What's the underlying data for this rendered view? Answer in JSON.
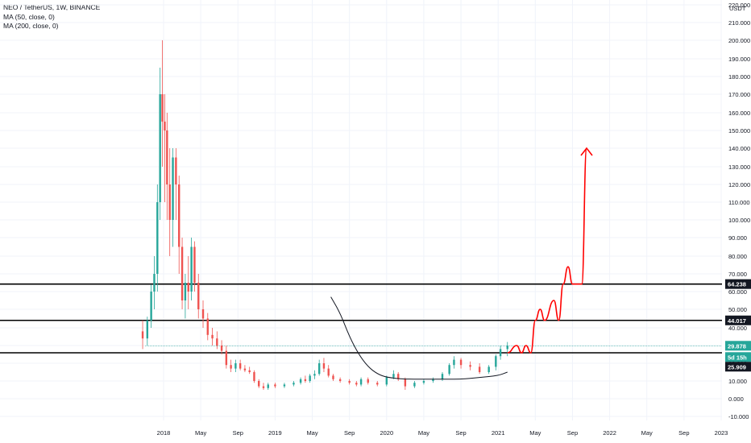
{
  "legend": {
    "symbol": "NEO / TetherUS, 1W, BINANCE",
    "ma50": "MA (50, close, 0)",
    "ma200": "MA (200, close, 0)"
  },
  "currency_label": "USDT",
  "colors": {
    "up": "#26a69a",
    "down": "#ef5350",
    "grid": "#f0f3fa",
    "hline": "#000000",
    "projection": "#ff0000",
    "ma": "#131722",
    "current_price": "#26a69a",
    "badge_text": "#ffffff",
    "axis_text": "#131722"
  },
  "chart_data": {
    "type": "candlestick",
    "y_ticks": [
      "220.000",
      "210.000",
      "200.000",
      "190.000",
      "180.000",
      "170.000",
      "160.000",
      "150.000",
      "140.000",
      "130.000",
      "120.000",
      "110.000",
      "100.000",
      "90.000",
      "80.000",
      "70.000",
      "60.000",
      "50.000",
      "40.000",
      "30.000",
      "20.000",
      "10.000",
      "0.000",
      "-10.000"
    ],
    "y_tick_values": [
      220,
      210,
      200,
      190,
      180,
      170,
      160,
      150,
      140,
      130,
      120,
      110,
      100,
      90,
      80,
      70,
      60,
      50,
      40,
      30,
      20,
      10,
      0,
      -10
    ],
    "ylim": [
      -13,
      222
    ],
    "x_ticks": [
      "2018",
      "May",
      "Sep",
      "2019",
      "May",
      "Sep",
      "2020",
      "May",
      "Sep",
      "2021",
      "May",
      "Sep",
      "2022",
      "May",
      "Sep",
      "2023"
    ],
    "x_tick_values": [
      "2018-01",
      "2018-05",
      "2018-09",
      "2019-01",
      "2019-05",
      "2019-09",
      "2020-01",
      "2020-05",
      "2020-09",
      "2021-01",
      "2021-05",
      "2021-09",
      "2022-01",
      "2022-05",
      "2022-09",
      "2023-01"
    ],
    "xlim": [
      "2017-08",
      "2023-01"
    ],
    "horizontal_levels": [
      64.238,
      44.017,
      25.909
    ],
    "price_labels": [
      {
        "value": 64.238,
        "text": "64.238",
        "style": "dark"
      },
      {
        "value": 44.017,
        "text": "44.017",
        "style": "dark"
      },
      {
        "value": 29.878,
        "text": "29.878",
        "style": "green"
      },
      {
        "value": 25.8,
        "text": "5d 15h",
        "style": "green"
      },
      {
        "value": 25.909,
        "text": "25.909",
        "style": "dark"
      }
    ],
    "current_price": 29.878,
    "candles": [
      {
        "t": "2017-11",
        "o": 38,
        "h": 44,
        "l": 28,
        "c": 34
      },
      {
        "t": "2017-11",
        "o": 34,
        "h": 46,
        "l": 30,
        "c": 44
      },
      {
        "t": "2017-12",
        "o": 44,
        "h": 64,
        "l": 40,
        "c": 60
      },
      {
        "t": "2017-12",
        "o": 60,
        "h": 80,
        "l": 50,
        "c": 70
      },
      {
        "t": "2017-12",
        "o": 70,
        "h": 120,
        "l": 60,
        "c": 110
      },
      {
        "t": "2018-01",
        "o": 110,
        "h": 185,
        "l": 100,
        "c": 170
      },
      {
        "t": "2018-01",
        "o": 170,
        "h": 200,
        "l": 130,
        "c": 155
      },
      {
        "t": "2018-01",
        "o": 155,
        "h": 170,
        "l": 110,
        "c": 150
      },
      {
        "t": "2018-01",
        "o": 150,
        "h": 160,
        "l": 100,
        "c": 120
      },
      {
        "t": "2018-02",
        "o": 120,
        "h": 140,
        "l": 80,
        "c": 100
      },
      {
        "t": "2018-02",
        "o": 100,
        "h": 140,
        "l": 85,
        "c": 135
      },
      {
        "t": "2018-02",
        "o": 135,
        "h": 140,
        "l": 100,
        "c": 120
      },
      {
        "t": "2018-03",
        "o": 120,
        "h": 125,
        "l": 70,
        "c": 85
      },
      {
        "t": "2018-03",
        "o": 85,
        "h": 90,
        "l": 50,
        "c": 55
      },
      {
        "t": "2018-03",
        "o": 55,
        "h": 70,
        "l": 45,
        "c": 65
      },
      {
        "t": "2018-04",
        "o": 65,
        "h": 80,
        "l": 50,
        "c": 60
      },
      {
        "t": "2018-04",
        "o": 60,
        "h": 90,
        "l": 55,
        "c": 85
      },
      {
        "t": "2018-04",
        "o": 85,
        "h": 88,
        "l": 60,
        "c": 65
      },
      {
        "t": "2018-05",
        "o": 65,
        "h": 70,
        "l": 45,
        "c": 50
      },
      {
        "t": "2018-05",
        "o": 50,
        "h": 55,
        "l": 40,
        "c": 45
      },
      {
        "t": "2018-06",
        "o": 45,
        "h": 48,
        "l": 33,
        "c": 36
      },
      {
        "t": "2018-06",
        "o": 36,
        "h": 40,
        "l": 30,
        "c": 34
      },
      {
        "t": "2018-07",
        "o": 34,
        "h": 38,
        "l": 28,
        "c": 30
      },
      {
        "t": "2018-07",
        "o": 30,
        "h": 33,
        "l": 25,
        "c": 27
      },
      {
        "t": "2018-08",
        "o": 27,
        "h": 30,
        "l": 17,
        "c": 19
      },
      {
        "t": "2018-08",
        "o": 19,
        "h": 22,
        "l": 15,
        "c": 17
      },
      {
        "t": "2018-09",
        "o": 17,
        "h": 22,
        "l": 15,
        "c": 20
      },
      {
        "t": "2018-09",
        "o": 20,
        "h": 22,
        "l": 16,
        "c": 17
      },
      {
        "t": "2018-10",
        "o": 17,
        "h": 19,
        "l": 15,
        "c": 16
      },
      {
        "t": "2018-10",
        "o": 16,
        "h": 18,
        "l": 14,
        "c": 15
      },
      {
        "t": "2018-11",
        "o": 15,
        "h": 16,
        "l": 9,
        "c": 10
      },
      {
        "t": "2018-11",
        "o": 10,
        "h": 11,
        "l": 6,
        "c": 7
      },
      {
        "t": "2018-12",
        "o": 7,
        "h": 9,
        "l": 5,
        "c": 6
      },
      {
        "t": "2018-12",
        "o": 6,
        "h": 9,
        "l": 5,
        "c": 8
      },
      {
        "t": "2019-01",
        "o": 8,
        "h": 9,
        "l": 6,
        "c": 7
      },
      {
        "t": "2019-02",
        "o": 7,
        "h": 9,
        "l": 6,
        "c": 8
      },
      {
        "t": "2019-03",
        "o": 8,
        "h": 10,
        "l": 7,
        "c": 9
      },
      {
        "t": "2019-04",
        "o": 9,
        "h": 12,
        "l": 8,
        "c": 11
      },
      {
        "t": "2019-04",
        "o": 11,
        "h": 13,
        "l": 9,
        "c": 10
      },
      {
        "t": "2019-05",
        "o": 10,
        "h": 14,
        "l": 9,
        "c": 13
      },
      {
        "t": "2019-05",
        "o": 13,
        "h": 16,
        "l": 11,
        "c": 14
      },
      {
        "t": "2019-06",
        "o": 14,
        "h": 22,
        "l": 13,
        "c": 20
      },
      {
        "t": "2019-06",
        "o": 20,
        "h": 23,
        "l": 15,
        "c": 17
      },
      {
        "t": "2019-07",
        "o": 17,
        "h": 19,
        "l": 12,
        "c": 13
      },
      {
        "t": "2019-07",
        "o": 13,
        "h": 14,
        "l": 10,
        "c": 11
      },
      {
        "t": "2019-08",
        "o": 11,
        "h": 12,
        "l": 9,
        "c": 10
      },
      {
        "t": "2019-09",
        "o": 10,
        "h": 11,
        "l": 8,
        "c": 9
      },
      {
        "t": "2019-10",
        "o": 9,
        "h": 10,
        "l": 7,
        "c": 8
      },
      {
        "t": "2019-10",
        "o": 8,
        "h": 12,
        "l": 7,
        "c": 11
      },
      {
        "t": "2019-11",
        "o": 11,
        "h": 12,
        "l": 8,
        "c": 9
      },
      {
        "t": "2019-12",
        "o": 9,
        "h": 10,
        "l": 7,
        "c": 8
      },
      {
        "t": "2020-01",
        "o": 8,
        "h": 13,
        "l": 7,
        "c": 12
      },
      {
        "t": "2020-02",
        "o": 12,
        "h": 16,
        "l": 11,
        "c": 14
      },
      {
        "t": "2020-02",
        "o": 14,
        "h": 15,
        "l": 10,
        "c": 11
      },
      {
        "t": "2020-03",
        "o": 11,
        "h": 12,
        "l": 5,
        "c": 7
      },
      {
        "t": "2020-04",
        "o": 7,
        "h": 10,
        "l": 6,
        "c": 9
      },
      {
        "t": "2020-05",
        "o": 9,
        "h": 11,
        "l": 8,
        "c": 10
      },
      {
        "t": "2020-06",
        "o": 10,
        "h": 12,
        "l": 9,
        "c": 11
      },
      {
        "t": "2020-07",
        "o": 11,
        "h": 15,
        "l": 10,
        "c": 14
      },
      {
        "t": "2020-08",
        "o": 14,
        "h": 20,
        "l": 13,
        "c": 19
      },
      {
        "t": "2020-08",
        "o": 19,
        "h": 24,
        "l": 17,
        "c": 22
      },
      {
        "t": "2020-09",
        "o": 22,
        "h": 23,
        "l": 17,
        "c": 19
      },
      {
        "t": "2020-10",
        "o": 19,
        "h": 21,
        "l": 16,
        "c": 18
      },
      {
        "t": "2020-11",
        "o": 18,
        "h": 20,
        "l": 14,
        "c": 15
      },
      {
        "t": "2020-12",
        "o": 15,
        "h": 19,
        "l": 14,
        "c": 18
      },
      {
        "t": "2021-01",
        "o": 18,
        "h": 25,
        "l": 16,
        "c": 24
      },
      {
        "t": "2021-01",
        "o": 24,
        "h": 30,
        "l": 22,
        "c": 28
      },
      {
        "t": "2021-02",
        "o": 28,
        "h": 32,
        "l": 24,
        "c": 29.878
      }
    ],
    "ma_line": [
      {
        "t": "2019-07",
        "v": 57
      },
      {
        "t": "2019-08",
        "v": 48
      },
      {
        "t": "2019-09",
        "v": 35
      },
      {
        "t": "2019-10",
        "v": 25
      },
      {
        "t": "2019-11",
        "v": 18
      },
      {
        "t": "2019-12",
        "v": 14
      },
      {
        "t": "2020-01",
        "v": 12
      },
      {
        "t": "2020-03",
        "v": 11
      },
      {
        "t": "2020-06",
        "v": 11
      },
      {
        "t": "2020-09",
        "v": 11
      },
      {
        "t": "2020-11",
        "v": 12
      },
      {
        "t": "2021-01",
        "v": 13
      },
      {
        "t": "2021-02",
        "v": 15
      }
    ],
    "projection_path": [
      {
        "t": "2021-02",
        "v": 25.909
      },
      {
        "t": "2021-03",
        "v": 30
      },
      {
        "t": "2021-03",
        "v": 25.909
      },
      {
        "t": "2021-04",
        "v": 30
      },
      {
        "t": "2021-04",
        "v": 25.909
      },
      {
        "t": "2021-05",
        "v": 44.017
      },
      {
        "t": "2021-05",
        "v": 50
      },
      {
        "t": "2021-06",
        "v": 44.017
      },
      {
        "t": "2021-07",
        "v": 55
      },
      {
        "t": "2021-07",
        "v": 44.017
      },
      {
        "t": "2021-08",
        "v": 64.238
      },
      {
        "t": "2021-08",
        "v": 74
      },
      {
        "t": "2021-09",
        "v": 64.238
      },
      {
        "t": "2021-10",
        "v": 64.238
      },
      {
        "t": "2021-10",
        "v": 140
      }
    ]
  }
}
